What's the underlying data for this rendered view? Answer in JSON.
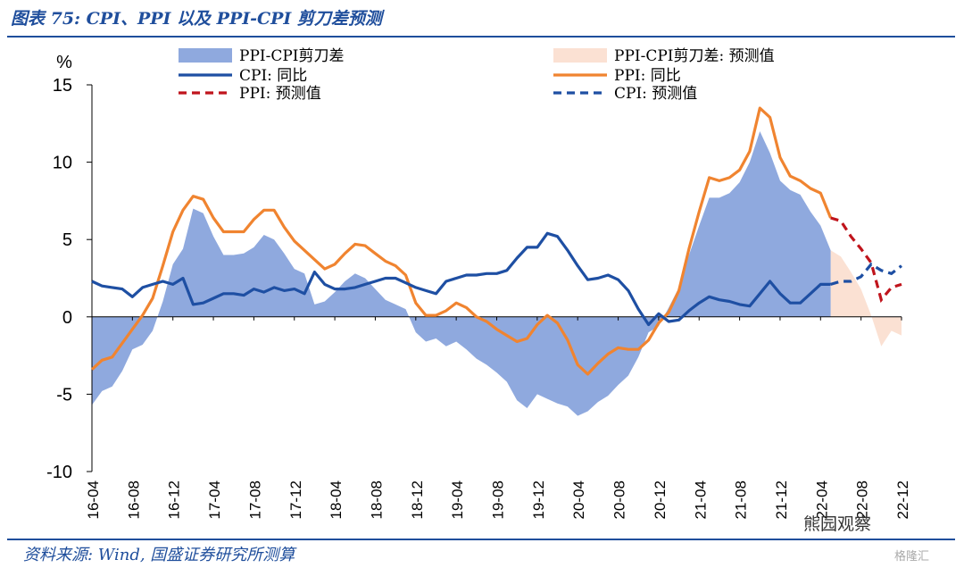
{
  "title": "图表 75:  CPI、PPI 以及 PPI-CPI 剪刀差预测",
  "source": "资料来源:  Wind, 国盛证券研究所测算",
  "watermark": "熊园观察",
  "watermark2": "格隆汇",
  "chart_data": {
    "type": "line",
    "ylabel": "%",
    "ylim": [
      -10,
      15
    ],
    "yticks": [
      -10,
      -5,
      0,
      5,
      10,
      15
    ],
    "x_tick_labels": [
      "16-04",
      "16-08",
      "16-12",
      "17-04",
      "17-08",
      "17-12",
      "18-04",
      "18-08",
      "18-12",
      "19-04",
      "19-08",
      "19-12",
      "20-04",
      "20-08",
      "20-12",
      "21-04",
      "21-08",
      "21-12",
      "22-04",
      "22-08",
      "22-12"
    ],
    "months": [
      "16-04",
      "16-05",
      "16-06",
      "16-07",
      "16-08",
      "16-09",
      "16-10",
      "16-11",
      "16-12",
      "17-01",
      "17-02",
      "17-03",
      "17-04",
      "17-05",
      "17-06",
      "17-07",
      "17-08",
      "17-09",
      "17-10",
      "17-11",
      "17-12",
      "18-01",
      "18-02",
      "18-03",
      "18-04",
      "18-05",
      "18-06",
      "18-07",
      "18-08",
      "18-09",
      "18-10",
      "18-11",
      "18-12",
      "19-01",
      "19-02",
      "19-03",
      "19-04",
      "19-05",
      "19-06",
      "19-07",
      "19-08",
      "19-09",
      "19-10",
      "19-11",
      "19-12",
      "20-01",
      "20-02",
      "20-03",
      "20-04",
      "20-05",
      "20-06",
      "20-07",
      "20-08",
      "20-09",
      "20-10",
      "20-11",
      "20-12",
      "21-01",
      "21-02",
      "21-03",
      "21-04",
      "21-05",
      "21-06",
      "21-07",
      "21-08",
      "21-09",
      "21-10",
      "21-11",
      "21-12",
      "22-01",
      "22-02",
      "22-03",
      "22-04",
      "22-05",
      "22-06",
      "22-07",
      "22-08",
      "22-09",
      "22-10",
      "22-11",
      "22-12"
    ],
    "legend": [
      {
        "key": "gap",
        "label": "PPI-CPI剪刀差",
        "style": "area",
        "color": "#8fa9de"
      },
      {
        "key": "gap_f",
        "label": "PPI-CPI剪刀差:  预测值",
        "style": "area",
        "color": "#fbe1d3"
      },
      {
        "key": "cpi",
        "label": "CPI:  同比",
        "style": "solid",
        "color": "#1e4fa3"
      },
      {
        "key": "ppi",
        "label": "PPI:  同比",
        "style": "solid",
        "color": "#f08430"
      },
      {
        "key": "ppi_f",
        "label": "PPI:  预测值",
        "style": "dash",
        "color": "#c0141c"
      },
      {
        "key": "cpi_f",
        "label": "CPI:  预测值",
        "style": "dash",
        "color": "#1e4fa3"
      }
    ],
    "series": {
      "cpi": [
        2.3,
        2.0,
        1.9,
        1.8,
        1.3,
        1.9,
        2.1,
        2.3,
        2.1,
        2.5,
        0.8,
        0.9,
        1.2,
        1.5,
        1.5,
        1.4,
        1.8,
        1.6,
        1.9,
        1.7,
        1.8,
        1.5,
        2.9,
        2.1,
        1.8,
        1.8,
        1.9,
        2.1,
        2.3,
        2.5,
        2.5,
        2.2,
        1.9,
        1.7,
        1.5,
        2.3,
        2.5,
        2.7,
        2.7,
        2.8,
        2.8,
        3.0,
        3.8,
        4.5,
        4.5,
        5.4,
        5.2,
        4.3,
        3.3,
        2.4,
        2.5,
        2.7,
        2.4,
        1.7,
        0.5,
        -0.5,
        0.2,
        -0.3,
        -0.2,
        0.4,
        0.9,
        1.3,
        1.1,
        1.0,
        0.8,
        0.7,
        1.5,
        2.3,
        1.5,
        0.9,
        0.9,
        1.5,
        2.1,
        2.1
      ],
      "ppi": [
        -3.4,
        -2.8,
        -2.6,
        -1.7,
        -0.8,
        0.1,
        1.2,
        3.3,
        5.5,
        6.9,
        7.8,
        7.6,
        6.4,
        5.5,
        5.5,
        5.5,
        6.3,
        6.9,
        6.9,
        5.8,
        4.9,
        4.3,
        3.7,
        3.1,
        3.4,
        4.1,
        4.7,
        4.6,
        4.1,
        3.6,
        3.3,
        2.7,
        0.9,
        0.1,
        0.1,
        0.4,
        0.9,
        0.6,
        0.0,
        -0.3,
        -0.8,
        -1.2,
        -1.6,
        -1.4,
        -0.5,
        0.1,
        -0.4,
        -1.5,
        -3.1,
        -3.7,
        -3.0,
        -2.4,
        -2.0,
        -2.1,
        -2.1,
        -1.5,
        -0.4,
        0.3,
        1.7,
        4.4,
        6.8,
        9.0,
        8.8,
        9.0,
        9.5,
        10.7,
        13.5,
        12.9,
        10.3,
        9.1,
        8.8,
        8.3,
        8.0,
        6.4
      ],
      "ppi_f": [
        6.4,
        6.2,
        5.2,
        4.4,
        3.5,
        1.1,
        1.9,
        2.1
      ],
      "cpi_f": [
        2.1,
        2.3,
        2.3,
        2.6,
        3.4,
        3.0,
        2.8,
        3.3
      ]
    }
  }
}
